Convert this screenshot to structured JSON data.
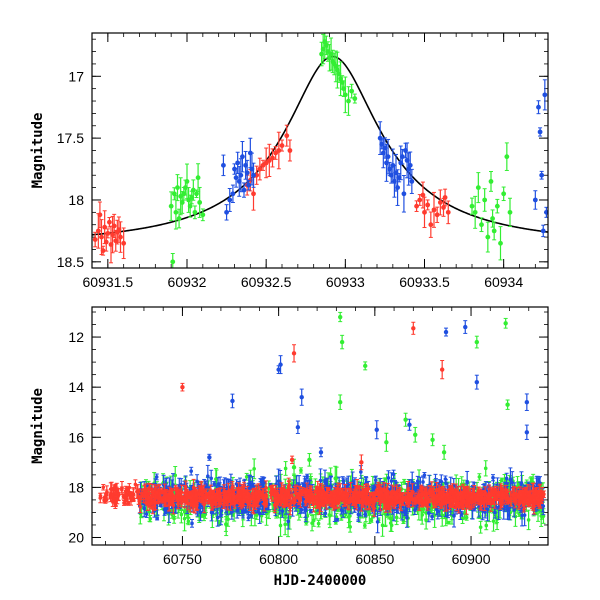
{
  "chart_data": [
    {
      "type": "scatter",
      "xlim": [
        60931.4,
        60934.28
      ],
      "ylim": [
        18.55,
        16.65
      ],
      "y_inverted": true,
      "xlabel": "",
      "ylabel": "Magnitude",
      "x_ticks": [
        60931.5,
        60932,
        60932.5,
        60933,
        60933.5,
        60934
      ],
      "x_tick_labels": [
        "60931.5",
        "60932",
        "60932.5",
        "60933",
        "60933.5",
        "60934"
      ],
      "y_ticks": [
        17,
        17.5,
        18,
        18.5
      ],
      "y_tick_labels": [
        "17",
        "17.5",
        "18",
        "18.5"
      ],
      "colors": {
        "red": "#ff3b2f",
        "green": "#33ee33",
        "blue": "#1f4fe0",
        "model": "#000000"
      },
      "model_curve": {
        "peak_x": 60932.92,
        "peak_mag": 16.84,
        "baseline_mag": 18.38,
        "width": 0.26
      },
      "series": [
        {
          "color": "red",
          "points": [
            [
              60931.42,
              18.32
            ],
            [
              60931.44,
              18.25
            ],
            [
              60931.45,
              18.12
            ],
            [
              60931.46,
              18.3
            ],
            [
              60931.47,
              18.41
            ],
            [
              60931.48,
              18.22
            ],
            [
              60931.49,
              18.34
            ],
            [
              60931.5,
              18.27
            ],
            [
              60931.51,
              18.18
            ],
            [
              60931.52,
              18.36
            ],
            [
              60931.53,
              18.28
            ],
            [
              60931.54,
              18.21
            ],
            [
              60931.55,
              18.33
            ],
            [
              60931.56,
              18.26
            ],
            [
              60931.57,
              18.24
            ],
            [
              60931.58,
              18.3
            ],
            [
              60931.6,
              18.35
            ],
            [
              60932.38,
              17.88
            ],
            [
              60932.4,
              17.84
            ],
            [
              60932.42,
              17.95
            ],
            [
              60932.44,
              17.8
            ],
            [
              60932.46,
              17.75
            ],
            [
              60932.48,
              17.72
            ],
            [
              60932.5,
              17.7
            ],
            [
              60932.52,
              17.68
            ],
            [
              60932.54,
              17.66
            ],
            [
              60932.56,
              17.62
            ],
            [
              60932.58,
              17.6
            ],
            [
              60932.6,
              17.56
            ],
            [
              60932.63,
              17.48
            ],
            [
              60932.65,
              17.6
            ],
            [
              60933.45,
              18.05
            ],
            [
              60933.47,
              18.0
            ],
            [
              60933.49,
              17.96
            ],
            [
              60933.5,
              18.1
            ],
            [
              60933.52,
              18.04
            ],
            [
              60933.54,
              18.2
            ],
            [
              60933.56,
              18.08
            ],
            [
              60933.58,
              18.12
            ],
            [
              60933.6,
              18.02
            ],
            [
              60933.62,
              18.06
            ],
            [
              60933.63,
              17.98
            ],
            [
              60933.65,
              18.1
            ]
          ]
        },
        {
          "color": "green",
          "points": [
            [
              60931.9,
              18.05
            ],
            [
              60931.91,
              18.5
            ],
            [
              60931.92,
              17.95
            ],
            [
              60931.93,
              18.1
            ],
            [
              60931.94,
              17.9
            ],
            [
              60931.95,
              18.15
            ],
            [
              60931.96,
              17.97
            ],
            [
              60931.97,
              18.02
            ],
            [
              60931.98,
              17.95
            ],
            [
              60931.99,
              17.9
            ],
            [
              60932.0,
              17.85
            ],
            [
              60932.01,
              18.0
            ],
            [
              60932.02,
              18.05
            ],
            [
              60932.03,
              17.98
            ],
            [
              60932.04,
              17.92
            ],
            [
              60932.05,
              18.1
            ],
            [
              60932.06,
              17.95
            ],
            [
              60932.07,
              17.82
            ],
            [
              60932.08,
              18.02
            ],
            [
              60932.1,
              18.12
            ],
            [
              60932.85,
              16.82
            ],
            [
              60932.86,
              16.78
            ],
            [
              60932.87,
              16.72
            ],
            [
              60932.88,
              16.75
            ],
            [
              60932.89,
              16.8
            ],
            [
              60932.9,
              16.85
            ],
            [
              60932.91,
              16.82
            ],
            [
              60932.92,
              16.88
            ],
            [
              60932.93,
              16.9
            ],
            [
              60932.94,
              16.92
            ],
            [
              60932.95,
              16.95
            ],
            [
              60932.96,
              16.98
            ],
            [
              60932.97,
              17.02
            ],
            [
              60932.98,
              17.05
            ],
            [
              60932.99,
              17.1
            ],
            [
              60933.0,
              17.15
            ],
            [
              60933.02,
              17.2
            ],
            [
              60933.04,
              17.12
            ],
            [
              60933.06,
              17.18
            ],
            [
              60933.8,
              18.05
            ],
            [
              60933.82,
              18.1
            ],
            [
              60933.84,
              17.9
            ],
            [
              60933.86,
              18.2
            ],
            [
              60933.88,
              18.0
            ],
            [
              60933.9,
              18.3
            ],
            [
              60933.92,
              17.85
            ],
            [
              60933.93,
              18.15
            ],
            [
              60933.94,
              18.25
            ],
            [
              60933.96,
              18.05
            ],
            [
              60933.98,
              18.35
            ],
            [
              60934.0,
              17.95
            ],
            [
              60934.02,
              17.65
            ],
            [
              60934.04,
              18.1
            ]
          ]
        },
        {
          "color": "blue",
          "points": [
            [
              60932.23,
              17.72
            ],
            [
              60932.25,
              18.1
            ],
            [
              60932.27,
              18.0
            ],
            [
              60932.29,
              17.95
            ],
            [
              60932.3,
              17.75
            ],
            [
              60932.31,
              17.82
            ],
            [
              60932.32,
              17.7
            ],
            [
              60932.33,
              17.85
            ],
            [
              60932.34,
              17.8
            ],
            [
              60932.35,
              17.65
            ],
            [
              60932.36,
              17.92
            ],
            [
              60932.37,
              17.72
            ],
            [
              60932.38,
              17.78
            ],
            [
              60932.39,
              17.88
            ],
            [
              60932.4,
              17.62
            ],
            [
              60932.41,
              17.75
            ],
            [
              60932.42,
              17.8
            ],
            [
              60933.22,
              17.5
            ],
            [
              60933.23,
              17.55
            ],
            [
              60933.24,
              17.62
            ],
            [
              60933.25,
              17.58
            ],
            [
              60933.26,
              17.7
            ],
            [
              60933.27,
              17.65
            ],
            [
              60933.28,
              17.75
            ],
            [
              60933.29,
              17.8
            ],
            [
              60933.3,
              17.72
            ],
            [
              60933.31,
              17.85
            ],
            [
              60933.32,
              17.78
            ],
            [
              60933.33,
              17.9
            ],
            [
              60933.34,
              17.82
            ],
            [
              60933.35,
              17.7
            ],
            [
              60933.36,
              17.65
            ],
            [
              60933.37,
              17.95
            ],
            [
              60933.38,
              17.6
            ],
            [
              60933.39,
              17.68
            ],
            [
              60933.4,
              17.75
            ],
            [
              60933.41,
              17.72
            ],
            [
              60933.42,
              17.85
            ],
            [
              60934.2,
              18.0
            ],
            [
              60934.22,
              17.25
            ],
            [
              60934.23,
              17.45
            ],
            [
              60934.24,
              17.8
            ],
            [
              60934.25,
              18.25
            ],
            [
              60934.26,
              17.15
            ],
            [
              60934.27,
              18.1
            ]
          ]
        }
      ]
    },
    {
      "type": "scatter",
      "xlim": [
        60703,
        60940
      ],
      "ylim": [
        20.3,
        10.8
      ],
      "y_inverted": true,
      "xlabel": "HJD-2400000",
      "ylabel": "Magnitude",
      "x_ticks": [
        60750,
        60800,
        60850,
        60900
      ],
      "x_tick_labels": [
        "60750",
        "60800",
        "60850",
        "60900"
      ],
      "y_ticks": [
        12,
        14,
        16,
        18,
        20
      ],
      "y_tick_labels": [
        "12",
        "14",
        "16",
        "18",
        "20"
      ],
      "colors": {
        "red": "#ff3b2f",
        "green": "#33ee33",
        "blue": "#1f4fe0"
      },
      "baseline": {
        "x_start": 60727,
        "x_end": 60938,
        "center_mag": 18.4,
        "spread": 0.55
      },
      "early_segment": {
        "x_start": 60707,
        "x_end": 60727,
        "center_mag": 18.3,
        "spread": 0.35
      },
      "outliers": [
        {
          "color": "green",
          "x": 60832,
          "y": 11.2
        },
        {
          "color": "green",
          "x": 60833,
          "y": 12.2
        },
        {
          "color": "green",
          "x": 60832,
          "y": 14.6
        },
        {
          "color": "green",
          "x": 60845,
          "y": 13.15
        },
        {
          "color": "green",
          "x": 60903,
          "y": 12.2
        },
        {
          "color": "green",
          "x": 60918,
          "y": 11.45
        },
        {
          "color": "green",
          "x": 60919,
          "y": 14.7
        },
        {
          "color": "green",
          "x": 60866,
          "y": 15.3
        },
        {
          "color": "green",
          "x": 60871,
          "y": 15.9
        },
        {
          "color": "green",
          "x": 60816,
          "y": 16.9
        },
        {
          "color": "green",
          "x": 60856,
          "y": 16.2
        },
        {
          "color": "green",
          "x": 60880,
          "y": 16.1
        },
        {
          "color": "green",
          "x": 60886,
          "y": 16.6
        },
        {
          "color": "green",
          "x": 60808,
          "y": 17.2
        },
        {
          "color": "red",
          "x": 60750,
          "y": 14.0
        },
        {
          "color": "red",
          "x": 60808,
          "y": 12.65
        },
        {
          "color": "red",
          "x": 60870,
          "y": 11.65
        },
        {
          "color": "red",
          "x": 60885,
          "y": 13.3
        },
        {
          "color": "red",
          "x": 60807,
          "y": 16.9
        },
        {
          "color": "red",
          "x": 60843,
          "y": 17.0
        },
        {
          "color": "blue",
          "x": 60801,
          "y": 13.1
        },
        {
          "color": "blue",
          "x": 60800,
          "y": 13.3
        },
        {
          "color": "blue",
          "x": 60812,
          "y": 14.4
        },
        {
          "color": "blue",
          "x": 60776,
          "y": 14.55
        },
        {
          "color": "blue",
          "x": 60887,
          "y": 11.8
        },
        {
          "color": "blue",
          "x": 60897,
          "y": 11.6
        },
        {
          "color": "blue",
          "x": 60903,
          "y": 13.8
        },
        {
          "color": "blue",
          "x": 60929,
          "y": 14.6
        },
        {
          "color": "blue",
          "x": 60929,
          "y": 15.8
        },
        {
          "color": "blue",
          "x": 60810,
          "y": 15.6
        },
        {
          "color": "blue",
          "x": 60822,
          "y": 16.6
        },
        {
          "color": "blue",
          "x": 60851,
          "y": 15.7
        },
        {
          "color": "blue",
          "x": 60868,
          "y": 15.5
        },
        {
          "color": "blue",
          "x": 60764,
          "y": 16.8
        }
      ]
    }
  ]
}
